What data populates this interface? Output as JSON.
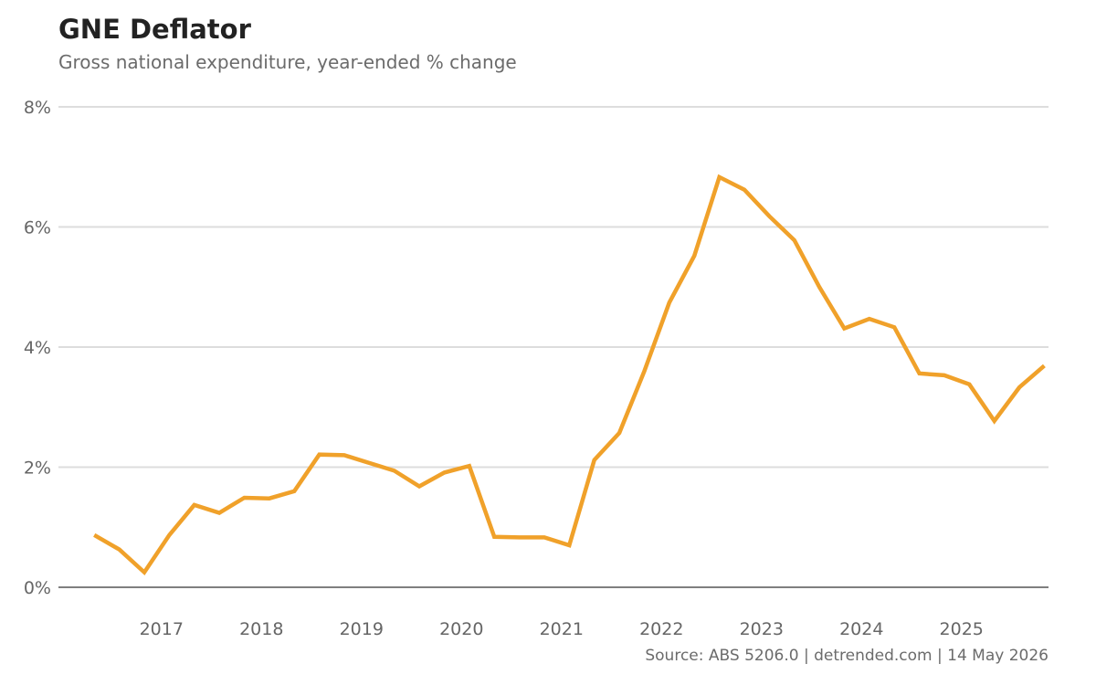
{
  "title": "GNE Deflator",
  "subtitle": "Gross national expenditure, year-ended % change",
  "source": "Source: ABS 5206.0 | detrended.com | 14 May 2026",
  "colors": {
    "line": "#f0a12a",
    "grid": "#dddddd",
    "axis": "#555555"
  },
  "chart_data": {
    "type": "line",
    "title": "GNE Deflator",
    "subtitle": "Gross national expenditure, year-ended % change",
    "xlabel": "",
    "ylabel": "",
    "ylim": [
      0,
      8
    ],
    "yticks": [
      0,
      2,
      4,
      6,
      8
    ],
    "ytick_labels": [
      "0%",
      "2%",
      "4%",
      "6%",
      "8%"
    ],
    "xlim": [
      2016.1,
      2026.0
    ],
    "xticks": [
      2017,
      2018,
      2019,
      2020,
      2021,
      2022,
      2023,
      2024,
      2025
    ],
    "xtick_labels": [
      "2017",
      "2018",
      "2019",
      "2020",
      "2021",
      "2022",
      "2023",
      "2024",
      "2025"
    ],
    "grid": true,
    "legend": "none",
    "series": [
      {
        "x": [
          "2016-06",
          "2016-09",
          "2016-12",
          "2017-03",
          "2017-06",
          "2017-09",
          "2017-12",
          "2018-03",
          "2018-06",
          "2018-09",
          "2018-12",
          "2019-03",
          "2019-06",
          "2019-09",
          "2019-12",
          "2020-03",
          "2020-06",
          "2020-09",
          "2020-12",
          "2021-03",
          "2021-06",
          "2021-09",
          "2021-12",
          "2022-03",
          "2022-06",
          "2022-09",
          "2022-12",
          "2023-03",
          "2023-06",
          "2023-09",
          "2023-12",
          "2024-03",
          "2024-06",
          "2024-09",
          "2024-12",
          "2025-03",
          "2025-06",
          "2025-09",
          "2025-12"
        ],
        "values": [
          0.87,
          0.63,
          0.25,
          0.87,
          1.37,
          1.24,
          1.49,
          1.48,
          1.6,
          2.21,
          2.2,
          2.07,
          1.94,
          1.68,
          1.91,
          2.02,
          0.84,
          0.83,
          0.83,
          0.7,
          2.12,
          2.57,
          3.6,
          4.74,
          5.52,
          6.83,
          6.62,
          6.18,
          5.78,
          5.0,
          4.31,
          4.47,
          4.33,
          3.56,
          3.53,
          3.38,
          2.77,
          3.33,
          3.69
        ]
      }
    ]
  }
}
